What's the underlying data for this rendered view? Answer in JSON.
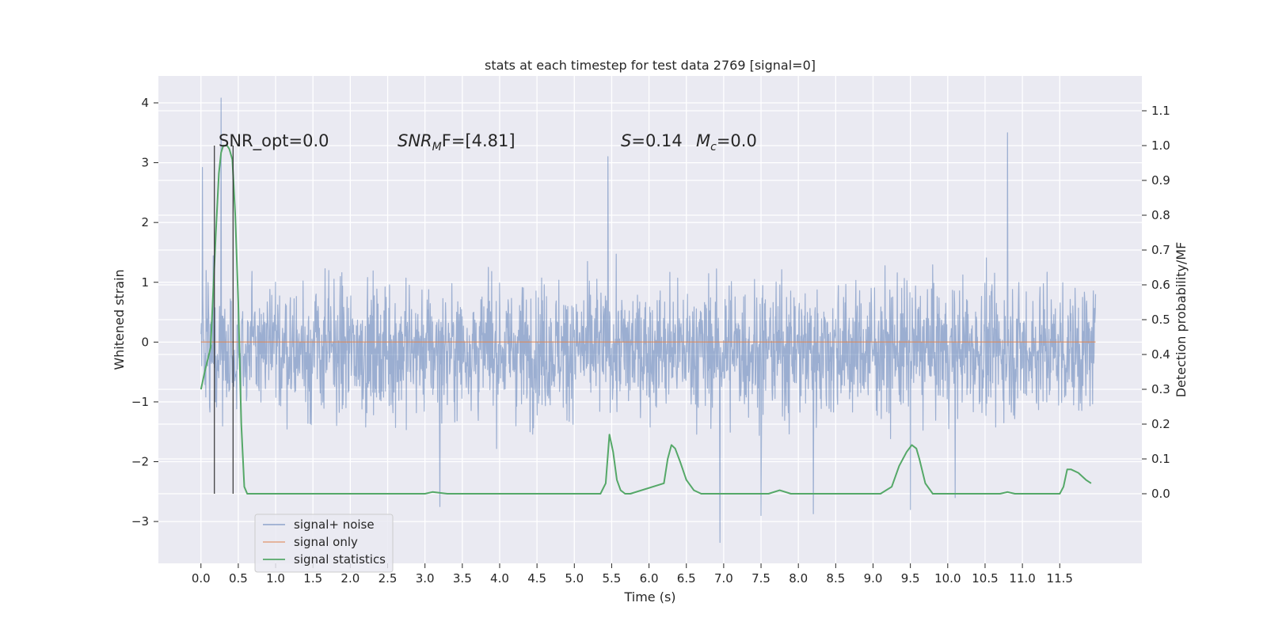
{
  "chart_data": {
    "type": "line",
    "title": "stats at each timestep for test data 2769 [signal=0]",
    "xlabel": "Time (s)",
    "ylabel_left": "Whitened strain",
    "ylabel_right": "Detection probability/MF",
    "xlim": [
      -0.57,
      12.6
    ],
    "ylim_left": [
      -3.7,
      4.45
    ],
    "ylim_right": [
      -0.2,
      1.2
    ],
    "xticks": [
      "0.0",
      "0.5",
      "1.0",
      "1.5",
      "2.0",
      "2.5",
      "3.0",
      "3.5",
      "4.0",
      "4.5",
      "5.0",
      "5.5",
      "6.0",
      "6.5",
      "7.0",
      "7.5",
      "8.0",
      "8.5",
      "9.0",
      "9.5",
      "10.0",
      "10.5",
      "11.0",
      "11.5"
    ],
    "yticks_left": [
      "−3",
      "−2",
      "−1",
      "0",
      "1",
      "2",
      "3",
      "4"
    ],
    "yticks_right": [
      "0.0",
      "0.1",
      "0.2",
      "0.3",
      "0.4",
      "0.5",
      "0.6",
      "0.7",
      "0.8",
      "0.9",
      "1.0",
      "1.1"
    ],
    "grid": true,
    "legend_position": "lower-left",
    "annotations": {
      "snr_opt": "SNR_opt=0.0",
      "snr_mf_name": "SNR",
      "snr_mf_sub": "M",
      "snr_mf_tail": "F=[4.81]",
      "s_name": "S",
      "s_value": "=0.14",
      "mc_name": "M",
      "mc_sub": "c",
      "mc_value": "=0.0"
    },
    "vertical_markers_x": [
      0.18,
      0.43
    ],
    "series": [
      {
        "name": "signal+ noise",
        "color": "#4c72b0",
        "axis": "left",
        "noise_envelope": {
          "x_range": [
            0.0,
            11.98
          ],
          "core_band": [
            -1.2,
            0.95
          ],
          "typical_extent": [
            -2.5,
            2.5
          ],
          "notable_peaks": [
            [
              0.02,
              2.92
            ],
            [
              0.27,
              4.08
            ],
            [
              5.45,
              3.1
            ],
            [
              10.8,
              3.5
            ],
            [
              6.95,
              -3.35
            ],
            [
              7.5,
              -2.9
            ],
            [
              8.2,
              -2.87
            ],
            [
              9.5,
              -2.8
            ],
            [
              3.2,
              -2.75
            ],
            [
              10.1,
              -2.6
            ]
          ]
        }
      },
      {
        "name": "signal only",
        "color": "#dd8452",
        "axis": "left",
        "x": [
          0.0,
          11.98
        ],
        "y": [
          0.0,
          0.0
        ]
      },
      {
        "name": "signal statistics",
        "color": "#55a868",
        "axis": "right",
        "x": [
          0.0,
          0.05,
          0.13,
          0.2,
          0.24,
          0.27,
          0.3,
          0.35,
          0.38,
          0.42,
          0.46,
          0.5,
          0.54,
          0.58,
          0.62,
          0.7,
          3.0,
          3.1,
          3.3,
          5.35,
          5.42,
          5.47,
          5.52,
          5.57,
          5.62,
          5.68,
          5.75,
          6.2,
          6.25,
          6.3,
          6.35,
          6.42,
          6.5,
          6.6,
          6.7,
          6.8,
          7.6,
          7.75,
          7.9,
          8.5,
          9.1,
          9.25,
          9.35,
          9.45,
          9.52,
          9.58,
          9.62,
          9.7,
          9.8,
          9.9,
          10.7,
          10.8,
          10.9,
          11.5,
          11.55,
          11.6,
          11.65,
          11.75,
          11.85,
          11.92
        ],
        "y": [
          0.3,
          0.35,
          0.42,
          0.75,
          0.92,
          0.98,
          1.0,
          1.0,
          0.99,
          0.96,
          0.8,
          0.55,
          0.2,
          0.02,
          0.0,
          0.0,
          0.0,
          0.005,
          0.0,
          0.0,
          0.03,
          0.17,
          0.12,
          0.04,
          0.01,
          0.0,
          0.0,
          0.03,
          0.1,
          0.14,
          0.13,
          0.09,
          0.04,
          0.01,
          0.0,
          0.0,
          0.0,
          0.01,
          0.0,
          0.0,
          0.0,
          0.02,
          0.08,
          0.12,
          0.14,
          0.13,
          0.1,
          0.03,
          0.0,
          0.0,
          0.0,
          0.005,
          0.0,
          0.0,
          0.02,
          0.07,
          0.07,
          0.06,
          0.04,
          0.03
        ]
      }
    ]
  }
}
